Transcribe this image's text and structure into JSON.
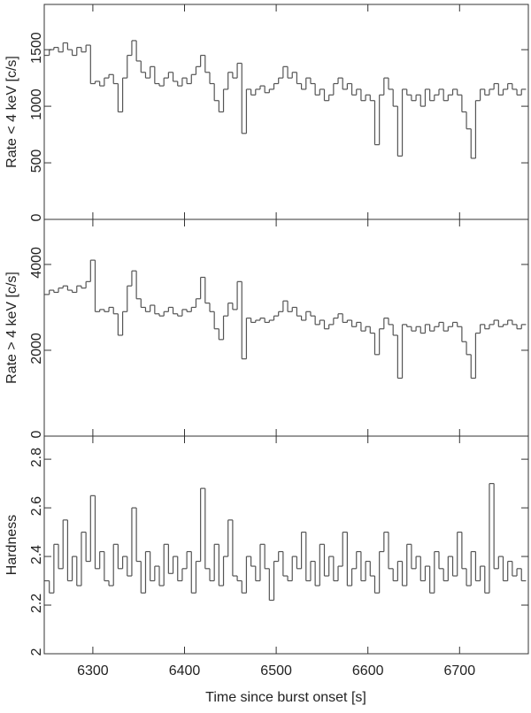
{
  "chart_data": {
    "type": "line",
    "step": true,
    "xlabel": "Time since burst onset [s]",
    "xlim": [
      6247,
      6775
    ],
    "xticks": [
      6300,
      6400,
      6500,
      6600,
      6700
    ],
    "x": [
      6250,
      6255,
      6260,
      6265,
      6270,
      6275,
      6280,
      6285,
      6290,
      6295,
      6300,
      6305,
      6310,
      6315,
      6320,
      6325,
      6330,
      6335,
      6340,
      6345,
      6350,
      6355,
      6360,
      6365,
      6370,
      6375,
      6380,
      6385,
      6390,
      6395,
      6400,
      6405,
      6410,
      6415,
      6420,
      6425,
      6430,
      6435,
      6440,
      6445,
      6450,
      6455,
      6460,
      6465,
      6470,
      6475,
      6480,
      6485,
      6490,
      6495,
      6500,
      6505,
      6510,
      6515,
      6520,
      6525,
      6530,
      6535,
      6540,
      6545,
      6550,
      6555,
      6560,
      6565,
      6570,
      6575,
      6580,
      6585,
      6590,
      6595,
      6600,
      6605,
      6610,
      6615,
      6620,
      6625,
      6630,
      6635,
      6640,
      6645,
      6650,
      6655,
      6660,
      6665,
      6670,
      6675,
      6680,
      6685,
      6690,
      6695,
      6700,
      6705,
      6710,
      6715,
      6720,
      6725,
      6730,
      6735,
      6740,
      6745,
      6750,
      6755,
      6760,
      6765,
      6770
    ],
    "panels": [
      {
        "ylabel": "Rate < 4 keV [c/s]",
        "color": "#555555",
        "ylim": [
          0,
          1900
        ],
        "yticks": [
          0,
          500,
          1000,
          1500
        ],
        "values": [
          1450,
          1500,
          1520,
          1480,
          1560,
          1500,
          1450,
          1520,
          1480,
          1540,
          1200,
          1220,
          1180,
          1250,
          1280,
          1200,
          950,
          1250,
          1450,
          1580,
          1400,
          1300,
          1250,
          1350,
          1200,
          1180,
          1250,
          1300,
          1220,
          1180,
          1250,
          1200,
          1280,
          1350,
          1450,
          1300,
          1200,
          1050,
          950,
          1150,
          1300,
          1250,
          1380,
          760,
          1150,
          1100,
          1150,
          1180,
          1120,
          1150,
          1200,
          1250,
          1350,
          1250,
          1300,
          1200,
          1150,
          1250,
          1200,
          1100,
          1150,
          1050,
          1100,
          1200,
          1250,
          1150,
          1200,
          1100,
          1150,
          1050,
          1100,
          1050,
          660,
          1100,
          1250,
          1150,
          1000,
          560,
          1150,
          1100,
          1050,
          1100,
          1000,
          1150,
          1050,
          1100,
          1150,
          1050,
          1100,
          1150,
          1100,
          950,
          800,
          540,
          1050,
          1150,
          1100,
          1150,
          1200,
          1100,
          1150,
          1200,
          1150,
          1100,
          1150
        ]
      },
      {
        "ylabel": "Rate > 4 keV [c/s]",
        "color": "#555555",
        "ylim": [
          0,
          5050
        ],
        "yticks": [
          0,
          2000,
          4000
        ],
        "values": [
          3300,
          3400,
          3350,
          3450,
          3500,
          3400,
          3350,
          3500,
          3450,
          3600,
          4100,
          2900,
          2950,
          2900,
          3000,
          2850,
          2350,
          2900,
          3500,
          3850,
          3200,
          3000,
          2900,
          3050,
          2850,
          2800,
          2900,
          3000,
          2850,
          2800,
          2950,
          2900,
          3000,
          3200,
          3700,
          3100,
          2900,
          2500,
          2250,
          2800,
          3100,
          2950,
          3600,
          1800,
          2750,
          2650,
          2700,
          2750,
          2650,
          2700,
          2800,
          2900,
          3150,
          2900,
          3000,
          2800,
          2700,
          2900,
          2800,
          2600,
          2700,
          2500,
          2600,
          2750,
          2850,
          2650,
          2700,
          2550,
          2650,
          2450,
          2550,
          2400,
          1900,
          2500,
          2750,
          2600,
          2350,
          1350,
          2600,
          2550,
          2450,
          2550,
          2400,
          2600,
          2450,
          2550,
          2650,
          2450,
          2550,
          2650,
          2550,
          2200,
          1900,
          1350,
          2400,
          2600,
          2500,
          2600,
          2700,
          2550,
          2600,
          2700,
          2600,
          2500,
          2600
        ]
      },
      {
        "ylabel": "Hardness",
        "color": "#555555",
        "ylim": [
          2,
          2.895
        ],
        "yticks": [
          2,
          2.2,
          2.4,
          2.6,
          2.8
        ],
        "values": [
          2.3,
          2.25,
          2.45,
          2.35,
          2.55,
          2.3,
          2.4,
          2.28,
          2.5,
          2.38,
          2.65,
          2.35,
          2.42,
          2.3,
          2.28,
          2.45,
          2.35,
          2.4,
          2.32,
          2.6,
          2.38,
          2.25,
          2.42,
          2.3,
          2.36,
          2.28,
          2.45,
          2.33,
          2.4,
          2.3,
          2.35,
          2.42,
          2.25,
          2.38,
          2.68,
          2.35,
          2.3,
          2.45,
          2.28,
          2.4,
          2.55,
          2.32,
          2.3,
          2.25,
          2.4,
          2.36,
          2.3,
          2.45,
          2.35,
          2.22,
          2.38,
          2.42,
          2.32,
          2.3,
          2.4,
          2.35,
          2.5,
          2.3,
          2.38,
          2.28,
          2.45,
          2.32,
          2.4,
          2.3,
          2.36,
          2.5,
          2.28,
          2.35,
          2.42,
          2.3,
          2.38,
          2.32,
          2.25,
          2.42,
          2.5,
          2.35,
          2.3,
          2.38,
          2.28,
          2.45,
          2.35,
          2.4,
          2.3,
          2.36,
          2.25,
          2.42,
          2.35,
          2.3,
          2.4,
          2.32,
          2.5,
          2.35,
          2.28,
          2.42,
          2.3,
          2.36,
          2.25,
          2.7,
          2.35,
          2.4,
          2.3,
          2.38,
          2.32,
          2.35,
          2.3
        ]
      }
    ]
  }
}
